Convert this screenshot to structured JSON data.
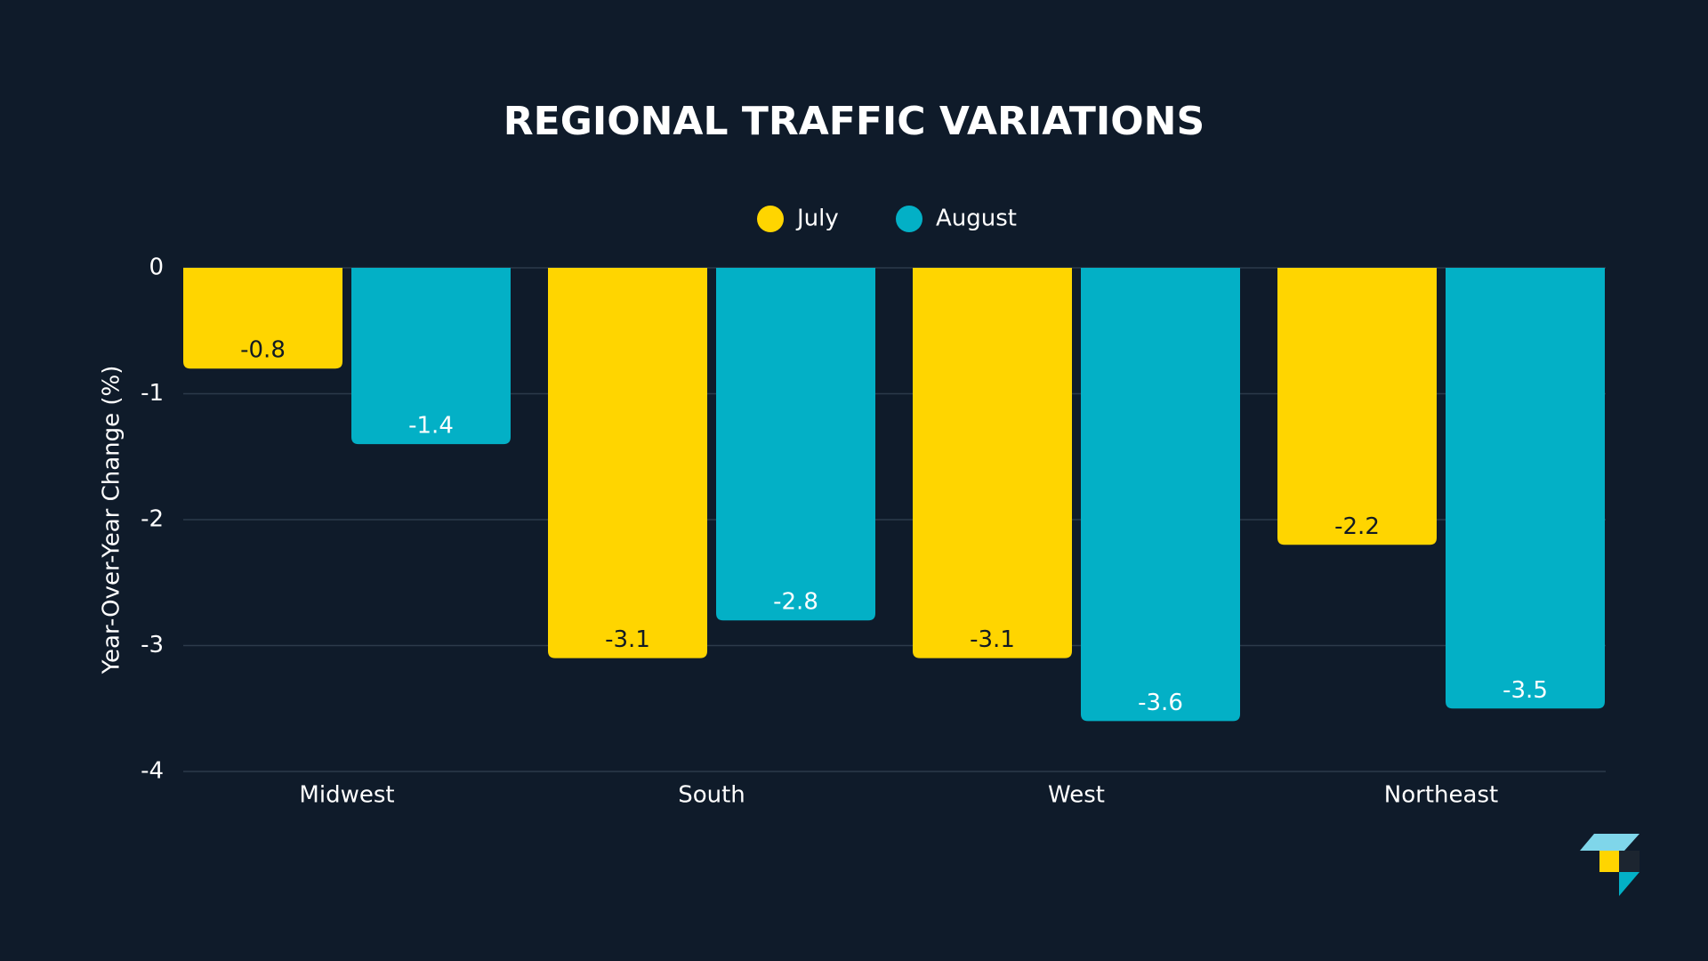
{
  "chart_data": {
    "type": "bar",
    "title": "REGIONAL TRAFFIC VARIATIONS",
    "y_label": "Year-Over-Year Change (%)",
    "categories": [
      "Midwest",
      "South",
      "West",
      "Northeast"
    ],
    "series": [
      {
        "name": "July",
        "color": "#ffd500",
        "values": [
          -0.8,
          -3.1,
          -3.1,
          -2.2
        ]
      },
      {
        "name": "August",
        "color": "#03b0c6",
        "values": [
          -1.4,
          -2.8,
          -3.6,
          -3.5
        ]
      }
    ],
    "ylim": [
      -4,
      0
    ],
    "yticks": [
      0,
      -1,
      -2,
      -3,
      -4
    ],
    "grid": true,
    "legend": "top"
  }
}
